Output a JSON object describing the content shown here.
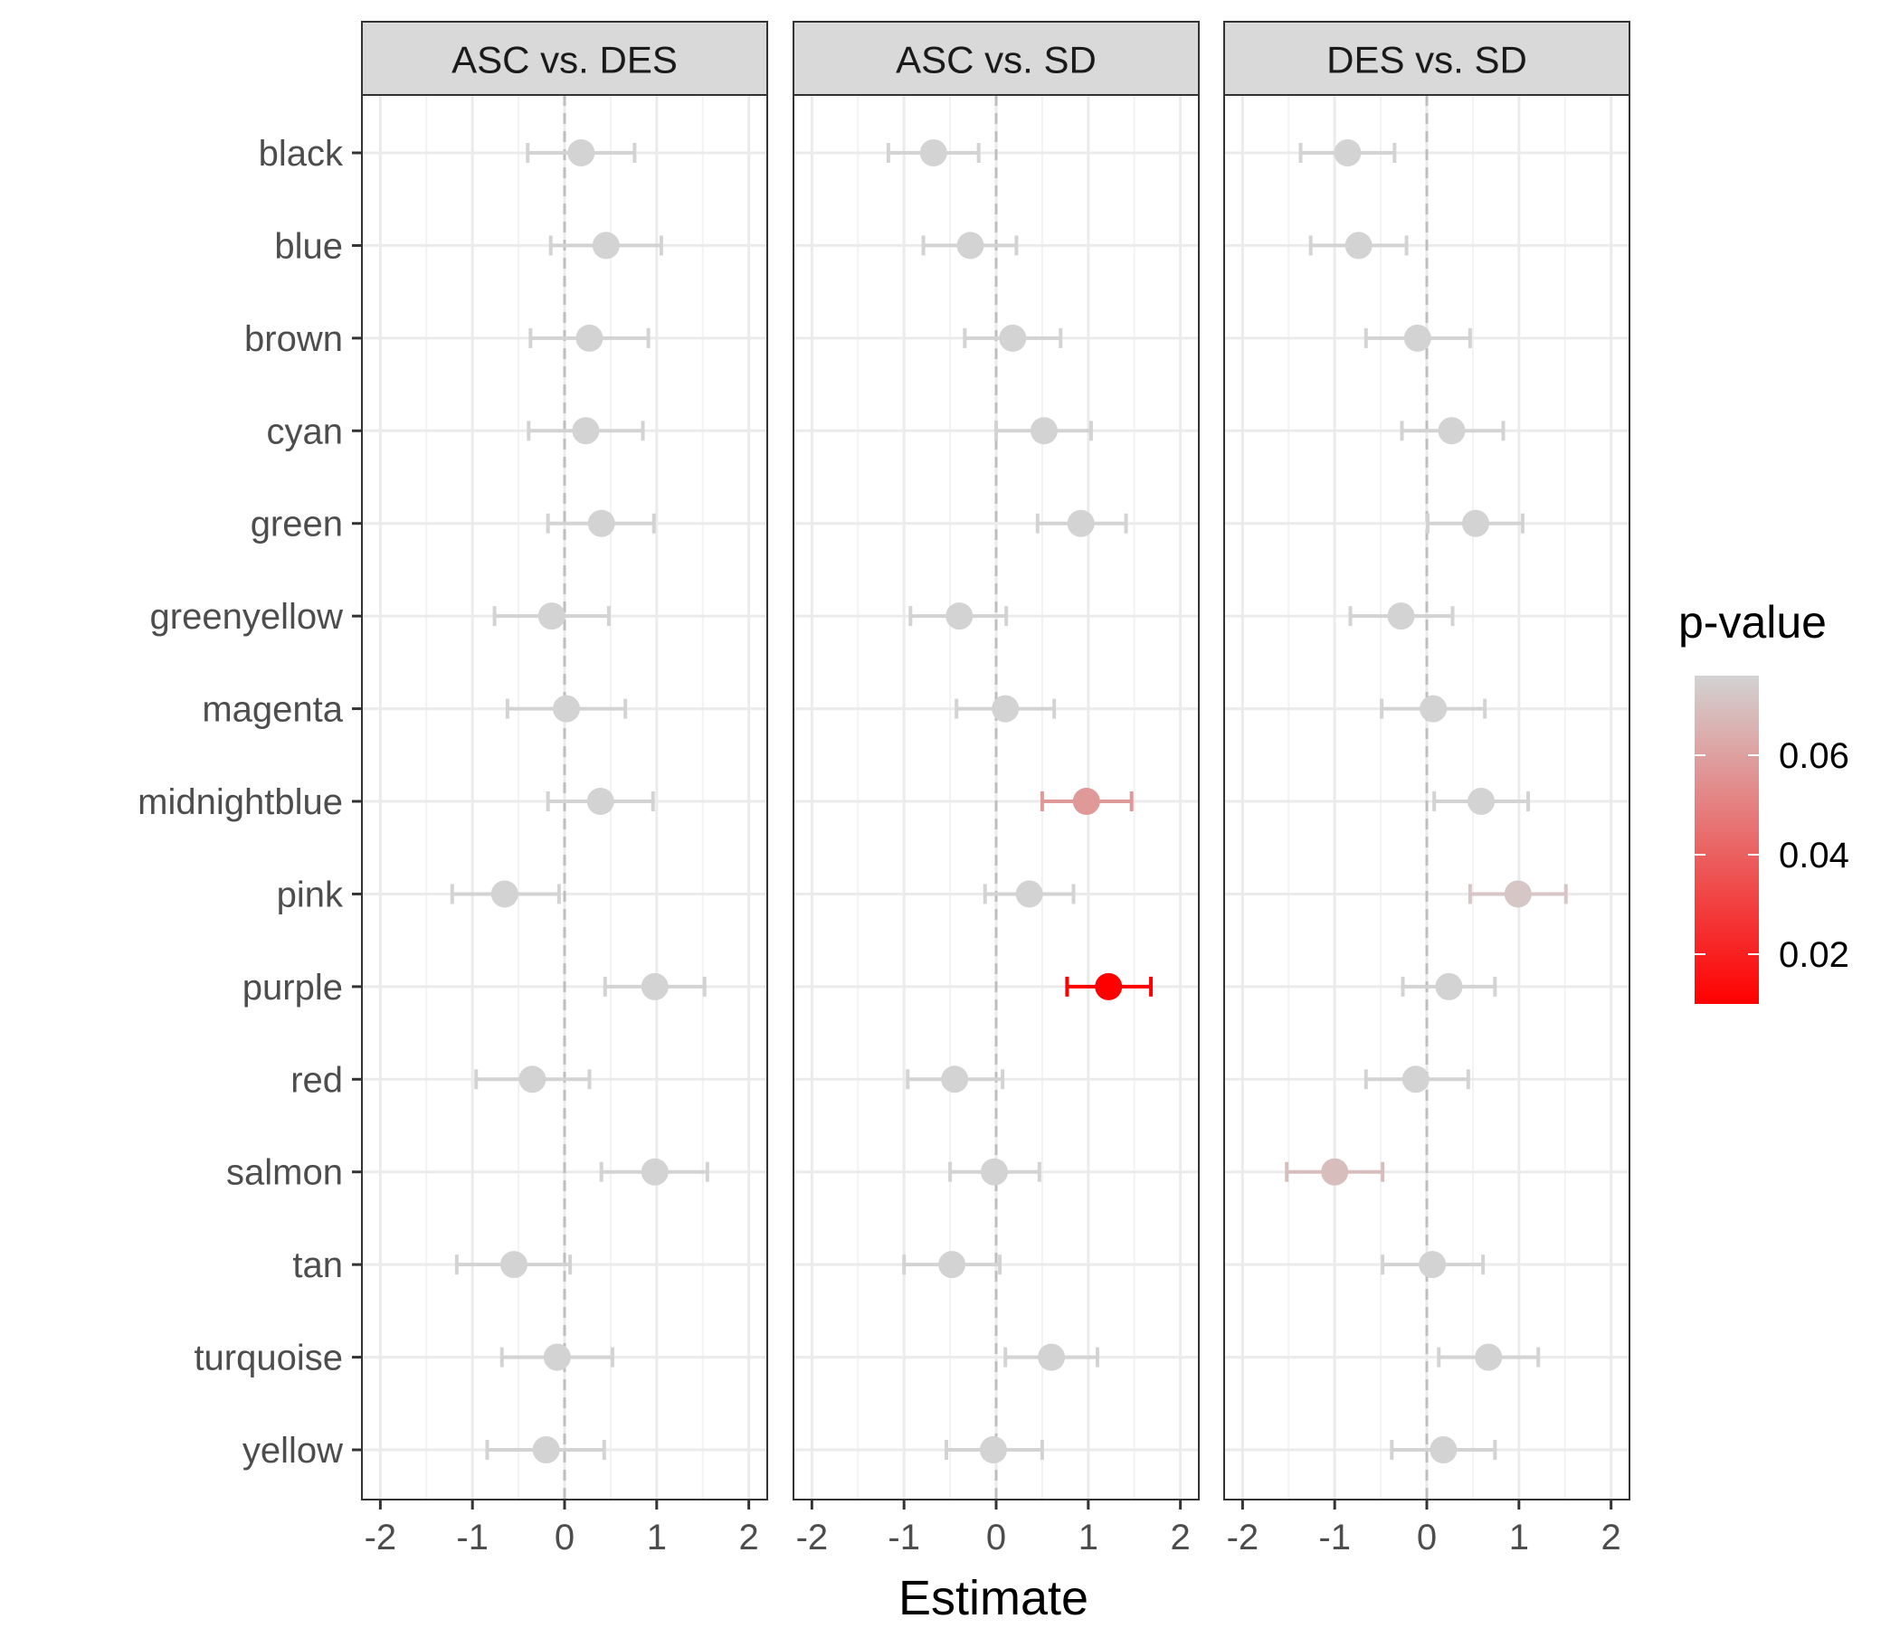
{
  "chart_data": {
    "type": "scatter",
    "subtype": "faceted point-range (estimate with error bars)",
    "xlabel": "Estimate",
    "ylabel": "",
    "xlim": [
      -2.2,
      2.2
    ],
    "x_ticks": [
      -2,
      -1,
      0,
      1,
      2
    ],
    "x_tick_labels": [
      "-2",
      "-1",
      "0",
      "1",
      "2"
    ],
    "reference_line": {
      "x": 0,
      "style": "dashed",
      "color": "#BEBEBE"
    },
    "grid": true,
    "categories": [
      "black",
      "blue",
      "brown",
      "cyan",
      "green",
      "greenyellow",
      "magenta",
      "midnightblue",
      "pink",
      "purple",
      "red",
      "salmon",
      "tan",
      "turquoise",
      "yellow"
    ],
    "color_scale": {
      "title": "p-value",
      "low_color": "#FF0000",
      "high_color": "#D3D3D3",
      "range": [
        0.01,
        0.076
      ],
      "ticks": [
        0.02,
        0.04,
        0.06
      ],
      "tick_labels": [
        "0.02",
        "0.04",
        "0.06"
      ],
      "placement": "right"
    },
    "facets": [
      {
        "title": "ASC vs. DES",
        "points": [
          {
            "category": "black",
            "estimate": 0.18,
            "low": -0.4,
            "high": 0.76,
            "p_value": 0.076
          },
          {
            "category": "blue",
            "estimate": 0.45,
            "low": -0.15,
            "high": 1.05,
            "p_value": 0.076
          },
          {
            "category": "brown",
            "estimate": 0.27,
            "low": -0.37,
            "high": 0.91,
            "p_value": 0.076
          },
          {
            "category": "cyan",
            "estimate": 0.23,
            "low": -0.39,
            "high": 0.85,
            "p_value": 0.076
          },
          {
            "category": "green",
            "estimate": 0.4,
            "low": -0.18,
            "high": 0.97,
            "p_value": 0.076
          },
          {
            "category": "greenyellow",
            "estimate": -0.14,
            "low": -0.76,
            "high": 0.48,
            "p_value": 0.076
          },
          {
            "category": "magenta",
            "estimate": 0.02,
            "low": -0.62,
            "high": 0.66,
            "p_value": 0.076
          },
          {
            "category": "midnightblue",
            "estimate": 0.39,
            "low": -0.18,
            "high": 0.96,
            "p_value": 0.076
          },
          {
            "category": "pink",
            "estimate": -0.65,
            "low": -1.22,
            "high": -0.06,
            "p_value": 0.076
          },
          {
            "category": "purple",
            "estimate": 0.98,
            "low": 0.44,
            "high": 1.52,
            "p_value": 0.076
          },
          {
            "category": "red",
            "estimate": -0.35,
            "low": -0.96,
            "high": 0.27,
            "p_value": 0.076
          },
          {
            "category": "salmon",
            "estimate": 0.98,
            "low": 0.4,
            "high": 1.55,
            "p_value": 0.076
          },
          {
            "category": "tan",
            "estimate": -0.55,
            "low": -1.17,
            "high": 0.06,
            "p_value": 0.076
          },
          {
            "category": "turquoise",
            "estimate": -0.08,
            "low": -0.68,
            "high": 0.52,
            "p_value": 0.076
          },
          {
            "category": "yellow",
            "estimate": -0.2,
            "low": -0.84,
            "high": 0.43,
            "p_value": 0.076
          }
        ]
      },
      {
        "title": "ASC vs. SD",
        "points": [
          {
            "category": "black",
            "estimate": -0.68,
            "low": -1.17,
            "high": -0.19,
            "p_value": 0.076
          },
          {
            "category": "blue",
            "estimate": -0.28,
            "low": -0.79,
            "high": 0.22,
            "p_value": 0.076
          },
          {
            "category": "brown",
            "estimate": 0.18,
            "low": -0.34,
            "high": 0.7,
            "p_value": 0.076
          },
          {
            "category": "cyan",
            "estimate": 0.52,
            "low": 0.0,
            "high": 1.03,
            "p_value": 0.076
          },
          {
            "category": "green",
            "estimate": 0.92,
            "low": 0.45,
            "high": 1.41,
            "p_value": 0.076
          },
          {
            "category": "greenyellow",
            "estimate": -0.4,
            "low": -0.93,
            "high": 0.11,
            "p_value": 0.076
          },
          {
            "category": "magenta",
            "estimate": 0.1,
            "low": -0.43,
            "high": 0.63,
            "p_value": 0.076
          },
          {
            "category": "midnightblue",
            "estimate": 0.98,
            "low": 0.5,
            "high": 1.47,
            "p_value": 0.058
          },
          {
            "category": "pink",
            "estimate": 0.36,
            "low": -0.12,
            "high": 0.84,
            "p_value": 0.076
          },
          {
            "category": "purple",
            "estimate": 1.22,
            "low": 0.77,
            "high": 1.68,
            "p_value": 0.01
          },
          {
            "category": "red",
            "estimate": -0.45,
            "low": -0.96,
            "high": 0.07,
            "p_value": 0.076
          },
          {
            "category": "salmon",
            "estimate": -0.02,
            "low": -0.5,
            "high": 0.47,
            "p_value": 0.076
          },
          {
            "category": "tan",
            "estimate": -0.48,
            "low": -1.0,
            "high": 0.04,
            "p_value": 0.076
          },
          {
            "category": "turquoise",
            "estimate": 0.6,
            "low": 0.1,
            "high": 1.1,
            "p_value": 0.076
          },
          {
            "category": "yellow",
            "estimate": -0.03,
            "low": -0.54,
            "high": 0.5,
            "p_value": 0.076
          }
        ]
      },
      {
        "title": "DES vs. SD",
        "points": [
          {
            "category": "black",
            "estimate": -0.86,
            "low": -1.37,
            "high": -0.35,
            "p_value": 0.076
          },
          {
            "category": "blue",
            "estimate": -0.74,
            "low": -1.26,
            "high": -0.22,
            "p_value": 0.076
          },
          {
            "category": "brown",
            "estimate": -0.1,
            "low": -0.66,
            "high": 0.47,
            "p_value": 0.076
          },
          {
            "category": "cyan",
            "estimate": 0.27,
            "low": -0.27,
            "high": 0.83,
            "p_value": 0.076
          },
          {
            "category": "green",
            "estimate": 0.53,
            "low": 0.01,
            "high": 1.04,
            "p_value": 0.076
          },
          {
            "category": "greenyellow",
            "estimate": -0.28,
            "low": -0.83,
            "high": 0.28,
            "p_value": 0.076
          },
          {
            "category": "magenta",
            "estimate": 0.07,
            "low": -0.49,
            "high": 0.63,
            "p_value": 0.076
          },
          {
            "category": "midnightblue",
            "estimate": 0.59,
            "low": 0.08,
            "high": 1.1,
            "p_value": 0.076
          },
          {
            "category": "pink",
            "estimate": 0.99,
            "low": 0.47,
            "high": 1.51,
            "p_value": 0.072
          },
          {
            "category": "purple",
            "estimate": 0.24,
            "low": -0.26,
            "high": 0.74,
            "p_value": 0.076
          },
          {
            "category": "red",
            "estimate": -0.12,
            "low": -0.66,
            "high": 0.45,
            "p_value": 0.076
          },
          {
            "category": "salmon",
            "estimate": -1.0,
            "low": -1.52,
            "high": -0.48,
            "p_value": 0.069
          },
          {
            "category": "tan",
            "estimate": 0.06,
            "low": -0.48,
            "high": 0.61,
            "p_value": 0.076
          },
          {
            "category": "turquoise",
            "estimate": 0.67,
            "low": 0.13,
            "high": 1.21,
            "p_value": 0.076
          },
          {
            "category": "yellow",
            "estimate": 0.18,
            "low": -0.38,
            "high": 0.74,
            "p_value": 0.076
          }
        ]
      }
    ]
  }
}
